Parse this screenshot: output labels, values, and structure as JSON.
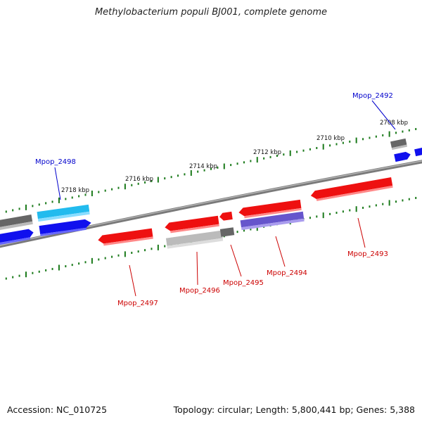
{
  "title": "Methylobacterium populi BJ001, complete genome",
  "footer": {
    "accession": "Accession: NC_010725",
    "summary": "Topology: circular; Length: 5,800,441 bp; Genes: 5,388"
  },
  "ticks": [
    {
      "kbp": 2718,
      "label": "2718 kbp"
    },
    {
      "kbp": 2716,
      "label": "2716 kbp"
    },
    {
      "kbp": 2714,
      "label": "2714 kbp"
    },
    {
      "kbp": 2712,
      "label": "2712 kbp"
    },
    {
      "kbp": 2710,
      "label": "2710 kbp"
    },
    {
      "kbp": 2708,
      "label": "2708 kbp"
    }
  ],
  "genes": [
    {
      "id": "Mpop_2492",
      "label": "Mpop_2492",
      "strand": "forward",
      "color": "#0000cc"
    },
    {
      "id": "Mpop_2493",
      "label": "Mpop_2493",
      "strand": "reverse",
      "color": "#cc0000"
    },
    {
      "id": "Mpop_2494",
      "label": "Mpop_2494",
      "strand": "reverse",
      "color": "#cc0000"
    },
    {
      "id": "Mpop_2495",
      "label": "Mpop_2495",
      "strand": "reverse",
      "color": "#cc0000"
    },
    {
      "id": "Mpop_2496",
      "label": "Mpop_2496",
      "strand": "reverse",
      "color": "#cc0000"
    },
    {
      "id": "Mpop_2497",
      "label": "Mpop_2497",
      "strand": "reverse",
      "color": "#cc0000"
    },
    {
      "id": "Mpop_2498",
      "label": "Mpop_2498",
      "strand": "forward",
      "color": "#0000cc"
    }
  ],
  "colors": {
    "backbone": "#888888",
    "forward_cds": "#1010ee",
    "reverse_cds": "#ee1010",
    "highlight_cds": "#22bbee",
    "rna_or_other": "#777777",
    "reverse_gray": "#bbbbbb",
    "purple_feature": "#6655cc",
    "tick": "#1a7a1a"
  }
}
